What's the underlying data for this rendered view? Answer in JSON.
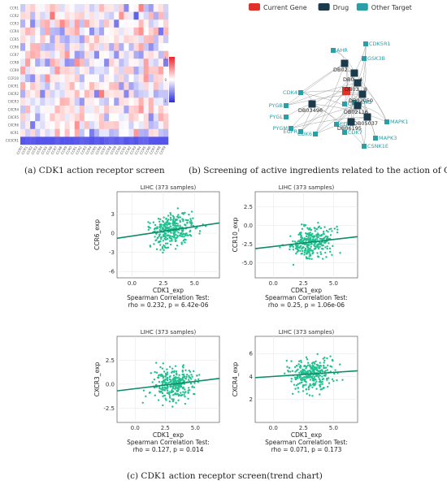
{
  "heatmap": {
    "rows": [
      "CCR1",
      "CCR2",
      "CCR3",
      "CCR4",
      "CCR5",
      "CCR6",
      "CCR7",
      "CCR8",
      "CCR9",
      "CCR10",
      "CXCR1",
      "CXCR2",
      "CXCR3",
      "CXCR4",
      "CXCR5",
      "CXCR6",
      "XCR1",
      "CX3CR1"
    ],
    "scale_labels": [
      "1",
      "0",
      "-1"
    ],
    "colors": {
      "high": "#e8242a",
      "mid": "#ffffff",
      "low": "#2b2bd6"
    }
  },
  "network": {
    "legend": [
      {
        "label": "Current Gene",
        "color": "#e0322b"
      },
      {
        "label": "Drug",
        "color": "#1b3a4b"
      },
      {
        "label": "Other Target",
        "color": "#2aa0a6"
      }
    ],
    "targets": [
      "AHR",
      "CDK5R1",
      "GSK3B",
      "CDK4",
      "PYGB",
      "PYGL",
      "PYGM",
      "CDK6",
      "EGFR",
      "CDK2",
      "CDK7",
      "CDK9",
      "MAPK1",
      "MAPK3",
      "CSNK1E",
      "CDK5",
      "CDK1"
    ],
    "drugs": [
      "DB02...",
      "DB0...4",
      "DB03...8",
      "DB02050",
      "DB03496",
      "DB02116",
      "DB05037",
      "DB06195"
    ]
  },
  "captions": {
    "a": "(a) CDK1 action receptor screen",
    "b": "(b) Screening of active ingredients related to the action of CDK1",
    "c": "(c) CDK1 action receptor screen(trend chart)"
  },
  "chart_data": [
    {
      "type": "scatter",
      "title": "LIHC (373 samples)",
      "xlabel": "CDK1_exp",
      "ylabel": "CCR6_exp",
      "xticks": [
        "0.0",
        "2.5",
        "5.0"
      ],
      "yticks": [
        "3",
        "0",
        "-3",
        "-6"
      ],
      "xlim": [
        -1.2,
        7
      ],
      "ylim": [
        -7,
        6.5
      ],
      "trend": {
        "x0": -1.2,
        "y0": -0.8,
        "x1": 7,
        "y1": 1.6
      },
      "stats": [
        "Spearman Correlation Test:",
        "rho = 0.232, p = 6.42e-06"
      ]
    },
    {
      "type": "scatter",
      "title": "LIHC (373 samples)",
      "xlabel": "CDK1_exp",
      "ylabel": "CCR10_exp",
      "xticks": [
        "0.0",
        "2.5",
        "5.0"
      ],
      "yticks": [
        "2.5",
        "0.0",
        "-2.5",
        "-5.0"
      ],
      "xlim": [
        -1.5,
        7
      ],
      "ylim": [
        -7,
        4.5
      ],
      "trend": {
        "x0": -1.5,
        "y0": -3.1,
        "x1": 7,
        "y1": -1.5
      },
      "stats": [
        "Spearman Correlation Test:",
        "rho = 0.25, p = 1.06e-06"
      ]
    },
    {
      "type": "scatter",
      "title": "LIHC (373 samples)",
      "xlabel": "CDK1_exp",
      "ylabel": "CXCR3_exp",
      "xticks": [
        "0.0",
        "2.5",
        "5.0"
      ],
      "yticks": [
        "2.5",
        "0.0",
        "-2.5"
      ],
      "xlim": [
        -1.5,
        7
      ],
      "ylim": [
        -4,
        5
      ],
      "trend": {
        "x0": -1.5,
        "y0": -0.7,
        "x1": 7,
        "y1": 0.6
      },
      "stats": [
        "Spearman Correlation Test:",
        "rho = 0.127, p = 0.014"
      ]
    },
    {
      "type": "scatter",
      "title": "LIHC (373 samples)",
      "xlabel": "CDK1_exp",
      "ylabel": "CXCR4_exp",
      "xticks": [
        "0.0",
        "2.5",
        "5.0"
      ],
      "yticks": [
        "6",
        "4",
        "2"
      ],
      "xlim": [
        -1.5,
        7
      ],
      "ylim": [
        0,
        7.5
      ],
      "trend": {
        "x0": -1.5,
        "y0": 3.9,
        "x1": 7,
        "y1": 4.5
      },
      "stats": [
        "Spearman Correlation Test:",
        "rho = 0.071, p = 0.173"
      ]
    }
  ]
}
